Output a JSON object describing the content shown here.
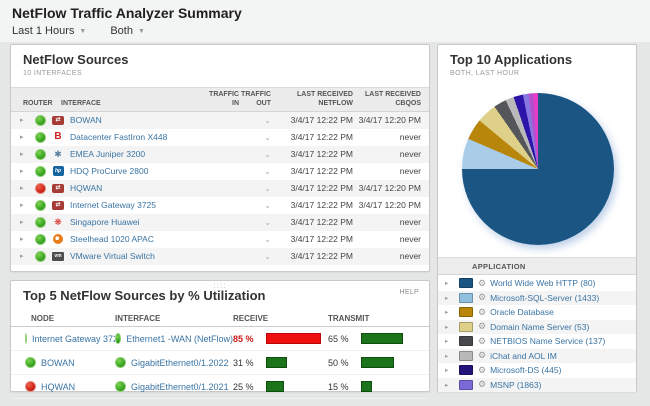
{
  "page": {
    "title": "NetFlow Traffic Analyzer Summary",
    "filters": {
      "time": "Last 1 Hours",
      "direction": "Both"
    }
  },
  "netflow_sources": {
    "title": "NetFlow Sources",
    "subtitle": "10 INTERFACES",
    "columns": [
      "ROUTER",
      "INTERFACE",
      "TRAFFIC IN",
      "TRAFFIC OUT",
      "LAST RECEIVED NETFLOW",
      "LAST RECEIVED CBQOS"
    ],
    "rows": [
      {
        "name": "BOWAN",
        "status": "up",
        "vendor": "cisco",
        "last_netflow": "3/4/17 12:22 PM",
        "last_cbqos": "3/4/17 12:20 PM"
      },
      {
        "name": "Datacenter FastIron X448",
        "status": "up",
        "vendor": "brocade",
        "last_netflow": "3/4/17 12:22 PM",
        "last_cbqos": "never"
      },
      {
        "name": "EMEA Juniper 3200",
        "status": "up",
        "vendor": "juniper",
        "last_netflow": "3/4/17 12:22 PM",
        "last_cbqos": "never"
      },
      {
        "name": "HDQ ProCurve 2800",
        "status": "up",
        "vendor": "hp",
        "last_netflow": "3/4/17 12:22 PM",
        "last_cbqos": "never"
      },
      {
        "name": "HQWAN",
        "status": "down",
        "vendor": "cisco",
        "last_netflow": "3/4/17 12:22 PM",
        "last_cbqos": "3/4/17 12:20 PM"
      },
      {
        "name": "Internet Gateway 3725",
        "status": "up",
        "vendor": "cisco",
        "last_netflow": "3/4/17 12:22 PM",
        "last_cbqos": "3/4/17 12:20 PM"
      },
      {
        "name": "Singapore Huawei",
        "status": "up",
        "vendor": "huawei",
        "last_netflow": "3/4/17 12:22 PM",
        "last_cbqos": "never"
      },
      {
        "name": "Steelhead 1020 APAC",
        "status": "up",
        "vendor": "riverbed",
        "last_netflow": "3/4/17 12:22 PM",
        "last_cbqos": "never"
      },
      {
        "name": "VMware Virtual Switch",
        "status": "up",
        "vendor": "vmware",
        "last_netflow": "3/4/17 12:22 PM",
        "last_cbqos": "never"
      }
    ]
  },
  "top5": {
    "title": "Top 5 NetFlow Sources by % Utilization",
    "help_label": "HELP",
    "columns": [
      "NODE",
      "INTERFACE",
      "RECEIVE",
      "TRANSMIT"
    ],
    "rows": [
      {
        "node": "Internet Gateway 3725",
        "node_status": "up",
        "interface": "Ethernet1 -WAN (NetFlow)",
        "iface_status": "up",
        "receive": 85,
        "receive_label": "85 %",
        "receive_alert": true,
        "transmit": 65,
        "transmit_label": "65 %"
      },
      {
        "node": "BOWAN",
        "node_status": "up",
        "interface": "GigabitEthernet0/1.2022",
        "iface_status": "up",
        "receive": 31,
        "receive_label": "31 %",
        "receive_alert": false,
        "transmit": 50,
        "transmit_label": "50 %"
      },
      {
        "node": "HQWAN",
        "node_status": "down",
        "interface": "GigabitEthernet0/1.2021",
        "iface_status": "up",
        "receive": 25,
        "receive_label": "25 %",
        "receive_alert": false,
        "transmit": 15,
        "transmit_label": "15 %"
      }
    ]
  },
  "top10_apps": {
    "title": "Top 10 Applications",
    "subtitle": "BOTH, LAST HOUR",
    "table_header": "APPLICATION",
    "apps": [
      {
        "name": "World Wide Web HTTP (80)",
        "color": "#1a5584"
      },
      {
        "name": "Microsoft-SQL-Server (1433)",
        "color": "#8fc0e0"
      },
      {
        "name": "Oracle Database",
        "color": "#b8860b"
      },
      {
        "name": "Domain Name Server (53)",
        "color": "#ded089"
      },
      {
        "name": "NETBIOS Name Service (137)",
        "color": "#47484b"
      },
      {
        "name": "iChat and AOL IM",
        "color": "#b9b9b9"
      },
      {
        "name": "Microsoft-DS (445)",
        "color": "#221478"
      },
      {
        "name": "MSNP (1863)",
        "color": "#7a6ad8"
      }
    ]
  },
  "chart_data": {
    "type": "pie",
    "title": "Top 10 Applications",
    "subtitle": "BOTH, LAST HOUR",
    "legend_position": "list-below",
    "slices": [
      {
        "label": "World Wide Web HTTP (80)",
        "value": 75.0,
        "color": "#1a5584"
      },
      {
        "label": "Microsoft-SQL-Server (1433)",
        "value": 6.5,
        "color": "#a9cde9"
      },
      {
        "label": "Oracle Database",
        "value": 4.5,
        "color": "#b8860b"
      },
      {
        "label": "Domain Name Server (53)",
        "value": 4.3,
        "color": "#ded089"
      },
      {
        "label": "NETBIOS Name Service (137)",
        "value": 2.7,
        "color": "#55565a"
      },
      {
        "label": "iChat and AOL IM",
        "value": 1.8,
        "color": "#b9b9b9"
      },
      {
        "label": "Microsoft-DS (445)",
        "value": 2.0,
        "color": "#2c14a8"
      },
      {
        "label": "MSNP (1863)",
        "value": 1.2,
        "color": "#8a76e0"
      },
      {
        "label": "unlabeled",
        "value": 1.0,
        "color": "#b44fd0"
      },
      {
        "label": "unlabeled",
        "value": 1.0,
        "color": "#e73cc8"
      }
    ]
  }
}
